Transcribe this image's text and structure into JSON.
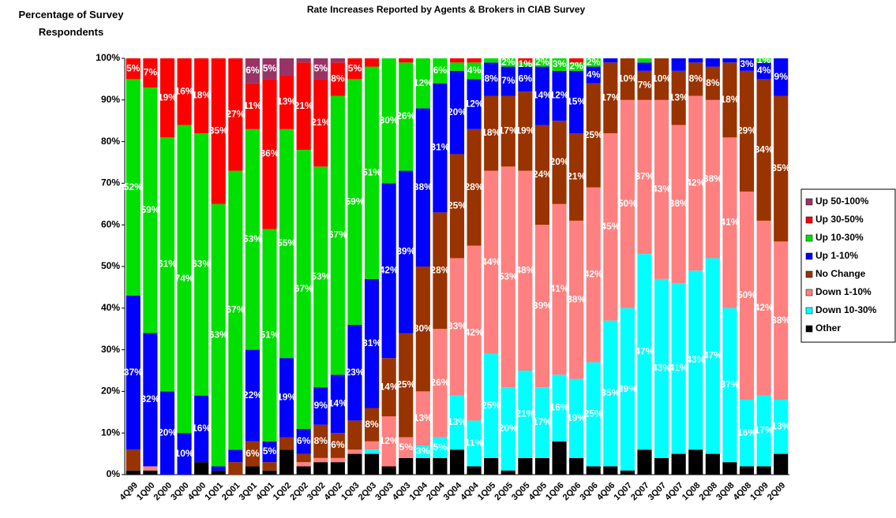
{
  "chart_data": {
    "type": "stacked_bar",
    "title": "Rate Increases Reported by Agents & Brokers in CIAB Survey",
    "y_label": "Percentage of Survey Respondents",
    "categories": [
      "4Q99",
      "1Q00",
      "2Q00",
      "3Q00",
      "4Q00",
      "1Q01",
      "2Q01",
      "3Q01",
      "4Q01",
      "1Q02",
      "2Q02",
      "3Q02",
      "4Q02",
      "1Q03",
      "2Q03",
      "3Q03",
      "4Q03",
      "1Q04",
      "2Q04",
      "3Q04",
      "4Q04",
      "1Q05",
      "2Q05",
      "3Q05",
      "4Q05",
      "1Q06",
      "2Q06",
      "3Q06",
      "4Q06",
      "1Q07",
      "2Q07",
      "3Q07",
      "4Q07",
      "1Q08",
      "2Q08",
      "3Q08",
      "4Q08",
      "1Q09",
      "2Q09"
    ],
    "ylim": [
      0,
      100
    ],
    "yticks": [
      {
        "value": 0,
        "label": "0%"
      },
      {
        "value": 10,
        "label": "10%"
      },
      {
        "value": 20,
        "label": "20%"
      },
      {
        "value": 30,
        "label": "30%"
      },
      {
        "value": 40,
        "label": "40%"
      },
      {
        "value": 50,
        "label": "50%"
      },
      {
        "value": 60,
        "label": "60%"
      },
      {
        "value": 70,
        "label": "70%"
      },
      {
        "value": 80,
        "label": "80%"
      },
      {
        "value": 90,
        "label": "90%"
      },
      {
        "value": 100,
        "label": "100%"
      }
    ],
    "legend": "right",
    "series": [
      {
        "name": "Up 50-100%",
        "color": "#993366",
        "values": [
          0,
          0,
          0,
          0,
          0,
          0,
          0,
          6,
          5,
          4,
          1,
          5,
          1,
          0,
          0,
          0,
          0,
          0,
          0,
          0,
          0,
          0,
          0,
          0,
          0,
          0,
          0,
          0,
          0,
          0,
          0,
          0,
          0,
          0,
          0,
          0,
          0,
          0,
          0
        ],
        "value_labels": [
          null,
          null,
          null,
          null,
          null,
          null,
          null,
          "6%",
          "5%",
          null,
          null,
          "5%",
          null,
          null,
          null,
          null,
          null,
          null,
          null,
          null,
          null,
          null,
          null,
          null,
          null,
          null,
          null,
          null,
          null,
          null,
          null,
          null,
          null,
          null,
          null,
          null,
          null,
          null,
          null
        ]
      },
      {
        "name": "Up 30-50%",
        "color": "#ff0000",
        "values": [
          5,
          7,
          19,
          16,
          18,
          35,
          27,
          11,
          36,
          13,
          21,
          21,
          8,
          5,
          2,
          0,
          1,
          0,
          0,
          1,
          1,
          0,
          0,
          1,
          0,
          0,
          1,
          0,
          0,
          0,
          0,
          0,
          0,
          0,
          0,
          0,
          0,
          0,
          0
        ],
        "value_labels": [
          "5%",
          "7%",
          "19%",
          "16%",
          "18%",
          "35%",
          "27%",
          "11%",
          "36%",
          "13%",
          "21%",
          "21%",
          "8%",
          "5%",
          null,
          null,
          null,
          null,
          null,
          null,
          null,
          null,
          null,
          null,
          null,
          null,
          null,
          null,
          null,
          null,
          null,
          null,
          null,
          null,
          null,
          null,
          null,
          null,
          null
        ]
      },
      {
        "name": "Up 10-30%",
        "color": "#00e000",
        "values": [
          52,
          59,
          61,
          74,
          63,
          63,
          67,
          53,
          51,
          55,
          67,
          53,
          67,
          59,
          51,
          30,
          26,
          12,
          6,
          2,
          4,
          1,
          2,
          1,
          2,
          3,
          2,
          2,
          0,
          0,
          1,
          0,
          0,
          0,
          0,
          0,
          0,
          1,
          0
        ],
        "value_labels": [
          "52%",
          "59%",
          "61%",
          "74%",
          "63%",
          "63%",
          "67%",
          "53%",
          "51%",
          "55%",
          "67%",
          "53%",
          "67%",
          "59%",
          "51%",
          "30%",
          "26%",
          "12%",
          "6%",
          null,
          "4%",
          null,
          "2%",
          "1%",
          "2%",
          "3%",
          "2%",
          "2%",
          null,
          null,
          null,
          null,
          null,
          null,
          null,
          null,
          null,
          "1%",
          null
        ]
      },
      {
        "name": "Up 1-10%",
        "color": "#0000ff",
        "values": [
          37,
          32,
          20,
          10,
          16,
          1,
          3,
          22,
          5,
          19,
          6,
          9,
          14,
          23,
          31,
          42,
          39,
          38,
          31,
          20,
          12,
          8,
          7,
          6,
          14,
          12,
          15,
          4,
          1,
          0,
          2,
          0,
          3,
          1,
          2,
          1,
          3,
          4,
          9
        ],
        "value_labels": [
          "37%",
          "32%",
          "20%",
          "10%",
          "16%",
          null,
          null,
          "22%",
          "5%",
          "19%",
          "6%",
          "9%",
          "14%",
          "23%",
          "31%",
          "42%",
          "39%",
          "38%",
          "31%",
          "20%",
          "12%",
          "8%",
          "7%",
          "6%",
          "14%",
          "12%",
          "15%",
          "4%",
          null,
          null,
          null,
          null,
          null,
          null,
          null,
          null,
          "3%",
          "4%",
          "9%"
        ]
      },
      {
        "name": "No Change",
        "color": "#993300",
        "values": [
          5,
          0,
          0,
          0,
          0,
          0,
          3,
          6,
          2,
          3,
          2,
          8,
          6,
          7,
          8,
          14,
          25,
          30,
          28,
          25,
          28,
          18,
          17,
          19,
          24,
          20,
          21,
          25,
          17,
          10,
          7,
          10,
          13,
          8,
          8,
          18,
          29,
          34,
          35
        ],
        "value_labels": [
          null,
          null,
          null,
          null,
          null,
          null,
          null,
          "6%",
          null,
          null,
          null,
          "8%",
          "6%",
          null,
          "8%",
          "14%",
          "25%",
          "30%",
          "28%",
          "25%",
          "28%",
          "18%",
          "17%",
          "19%",
          "24%",
          "20%",
          "21%",
          "25%",
          "17%",
          "10%",
          "7%",
          "10%",
          "13%",
          "8%",
          "8%",
          "18%",
          "29%",
          "34%",
          "35%"
        ]
      },
      {
        "name": "Down 1-10%",
        "color": "#ff8080",
        "values": [
          0,
          1,
          0,
          0,
          0,
          0,
          0,
          0,
          0,
          0,
          1,
          1,
          1,
          1,
          2,
          12,
          5,
          13,
          26,
          33,
          42,
          44,
          53,
          48,
          39,
          41,
          38,
          42,
          45,
          50,
          37,
          43,
          38,
          42,
          38,
          41,
          50,
          42,
          38
        ],
        "value_labels": [
          null,
          null,
          null,
          null,
          null,
          null,
          null,
          null,
          null,
          null,
          null,
          null,
          null,
          null,
          null,
          "12%",
          "5%",
          "13%",
          "26%",
          "33%",
          "42%",
          "44%",
          "53%",
          "48%",
          "39%",
          "41%",
          "38%",
          "42%",
          "45%",
          "50%",
          "37%",
          "43%",
          "38%",
          "42%",
          "38%",
          "41%",
          "50%",
          "42%",
          "38%"
        ]
      },
      {
        "name": "Down 10-30%",
        "color": "#00ffff",
        "values": [
          0,
          0,
          0,
          0,
          0,
          0,
          0,
          0,
          0,
          0,
          0,
          0,
          0,
          0,
          1,
          0,
          0,
          3,
          5,
          13,
          11,
          25,
          20,
          21,
          17,
          16,
          19,
          25,
          35,
          39,
          47,
          43,
          41,
          43,
          47,
          37,
          16,
          17,
          13
        ],
        "value_labels": [
          null,
          null,
          null,
          null,
          null,
          null,
          null,
          null,
          null,
          null,
          null,
          null,
          null,
          null,
          null,
          null,
          null,
          "3%",
          "5%",
          "13%",
          "11%",
          "25%",
          "20%",
          "21%",
          "17%",
          "16%",
          "19%",
          "25%",
          "35%",
          "39%",
          "47%",
          "43%",
          "41%",
          "43%",
          "47%",
          "37%",
          "16%",
          "17%",
          "13%"
        ]
      },
      {
        "name": "Other",
        "color": "#000000",
        "values": [
          1,
          1,
          0,
          0,
          3,
          1,
          0,
          2,
          1,
          6,
          2,
          3,
          3,
          5,
          5,
          2,
          4,
          4,
          4,
          6,
          2,
          4,
          1,
          4,
          4,
          8,
          4,
          2,
          2,
          1,
          6,
          4,
          5,
          6,
          5,
          3,
          2,
          2,
          5
        ]
      }
    ]
  }
}
